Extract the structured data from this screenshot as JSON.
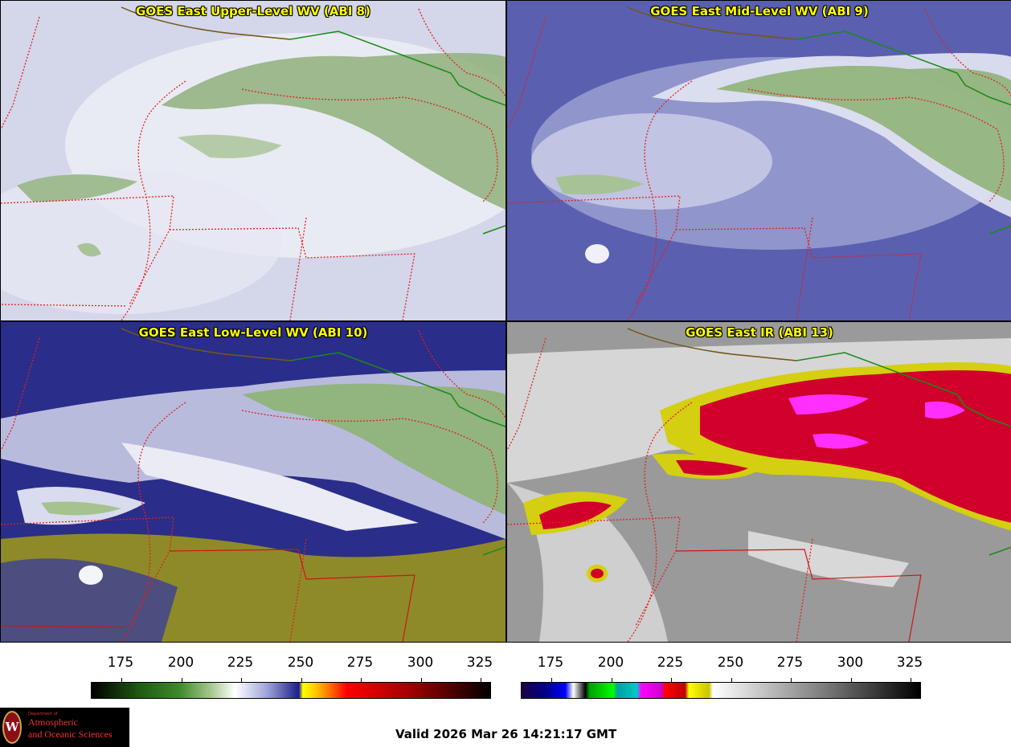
{
  "panels": [
    {
      "title": "GOES East Upper-Level WV (ABI 8)",
      "palette": "wv",
      "base": "#d4d6ea",
      "cloud": "#f4f5fa",
      "moist": "#7fa567"
    },
    {
      "title": "GOES East Mid-Level WV (ABI 9)",
      "palette": "wv",
      "base": "#5a5fb0",
      "cloud": "#e3e5f3",
      "moist": "#8fb378"
    },
    {
      "title": "GOES East Low-Level WV (ABI 10)",
      "palette": "wv-low",
      "base": "#2a2d8a",
      "cloud": "#e8e9f4",
      "moist": "#8fb378",
      "dry": "#a8a520"
    },
    {
      "title": "GOES East IR (ABI 13)",
      "palette": "ir",
      "base": "#9a9a9a",
      "cloud": "#eeeeee",
      "cold": "#d0002a",
      "coldest": "#ff30ff",
      "edge": "#c9c400"
    }
  ],
  "colorbars": [
    {
      "name": "wv-colorbar",
      "ticks": [
        "175",
        "200",
        "225",
        "250",
        "275",
        "300",
        "325"
      ],
      "min": 163,
      "max": 330
    },
    {
      "name": "ir-colorbar",
      "ticks": [
        "175",
        "200",
        "225",
        "250",
        "275",
        "300",
        "325"
      ],
      "min": 163,
      "max": 330
    }
  ],
  "logo": {
    "line1": "Department of",
    "line2": "Atmospheric",
    "line3": "and Oceanic Sciences",
    "seal_letter": "W"
  },
  "valid_time": "Valid 2026 Mar 26 14:21:17 GMT",
  "colors": {
    "state_border": "#e02020",
    "coast": "#1a8a1a",
    "title": "#ffff00"
  }
}
